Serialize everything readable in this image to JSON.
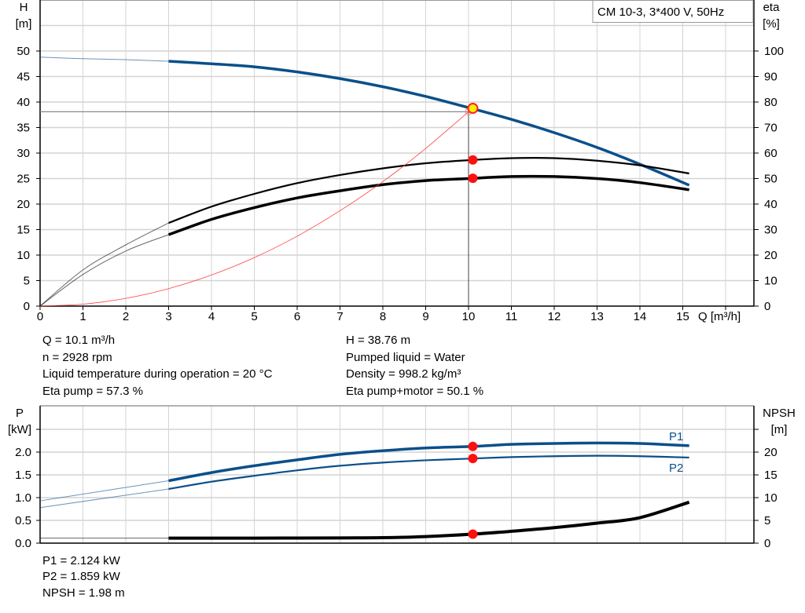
{
  "chart_data": [
    {
      "type": "line",
      "title_box": "CM 10-3, 3*400 V, 50Hz",
      "xlabel": "Q [m³/h]",
      "ylabel_left": {
        "name": "H",
        "unit": "[m]"
      },
      "ylabel_right": {
        "name": "eta",
        "unit": "[%]"
      },
      "x_ticks": [
        0,
        1,
        2,
        3,
        4,
        5,
        6,
        7,
        8,
        9,
        10,
        11,
        12,
        13,
        14,
        15
      ],
      "y_left_ticks": [
        0,
        5,
        10,
        15,
        20,
        25,
        30,
        35,
        40,
        45,
        50
      ],
      "y_right_ticks": [
        0,
        10,
        20,
        30,
        40,
        50,
        60,
        70,
        80,
        90,
        100
      ],
      "xlim": [
        0,
        16.7
      ],
      "ylim_left": [
        0,
        60
      ],
      "ylim_right": [
        0,
        120
      ],
      "grid": true,
      "series": [
        {
          "key": "H",
          "axis": "left",
          "color": "#0b4f8a",
          "x": [
            0,
            1,
            2,
            3,
            4,
            5,
            6,
            7,
            8,
            9,
            10,
            11,
            12,
            13,
            14,
            15.15
          ],
          "y": [
            48.8,
            48.5,
            48.3,
            48.0,
            47.5,
            46.9,
            45.9,
            44.6,
            43.0,
            41.1,
            38.9,
            36.6,
            34.0,
            31.1,
            27.8,
            23.7
          ],
          "thin_below": 3
        },
        {
          "key": "eta_pump",
          "axis": "right",
          "color": "#000000",
          "x": [
            0,
            1,
            2,
            3,
            4,
            5,
            6,
            7,
            8,
            9,
            10,
            11,
            12,
            13,
            14,
            15.15
          ],
          "y": [
            0,
            14.2,
            24,
            32.6,
            39,
            44,
            48.2,
            51.4,
            54,
            56,
            57.2,
            58,
            58,
            57,
            55.2,
            52
          ],
          "thin_below": 3
        },
        {
          "key": "eta_pump_motor",
          "axis": "right",
          "color": "#000000",
          "x": [
            0,
            1,
            2,
            3,
            4,
            5,
            6,
            7,
            8,
            9,
            10,
            11,
            12,
            13,
            14,
            15.15
          ],
          "y": [
            0,
            12.4,
            21.6,
            28,
            34,
            38.6,
            42.4,
            45.2,
            47.6,
            49.2,
            50,
            50.8,
            50.8,
            50,
            48.4,
            45.6
          ],
          "thin_below": 3
        },
        {
          "key": "system_curve",
          "axis": "left",
          "color": "#ff4040",
          "x": [
            0,
            1,
            2,
            3,
            4,
            5,
            6,
            7,
            8,
            9,
            10
          ],
          "y": [
            0,
            0.38,
            1.52,
            3.43,
            6.1,
            9.5,
            13.7,
            18.7,
            24.4,
            30.9,
            38.1
          ]
        }
      ],
      "duty_point": {
        "Q": 10.1,
        "H": 38.76,
        "eta_pump": 57.3,
        "eta_pump_motor": 50.1
      },
      "requested_point": {
        "Q": 10.0,
        "H": 38.1
      }
    },
    {
      "type": "line",
      "ylabel_left": {
        "name": "P",
        "unit": "[kW]"
      },
      "ylabel_right": {
        "name": "NPSH",
        "unit": "[m]"
      },
      "y_left_ticks": [
        "0.0",
        "0.5",
        "1.0",
        "1.5",
        "2.0"
      ],
      "y_right_ticks": [
        0,
        5,
        10,
        15,
        20
      ],
      "xlim": [
        0,
        16.7
      ],
      "ylim_left": [
        0,
        3.0
      ],
      "ylim_right": [
        0,
        30
      ],
      "grid": true,
      "series": [
        {
          "key": "P1",
          "name": "P1",
          "axis": "left",
          "color": "#0b4f8a",
          "x": [
            0,
            3,
            4,
            5,
            6,
            7,
            8,
            9,
            10.1,
            11,
            12,
            13,
            14,
            15.15
          ],
          "y": [
            0.93,
            1.37,
            1.55,
            1.7,
            1.83,
            1.95,
            2.03,
            2.09,
            2.124,
            2.17,
            2.19,
            2.2,
            2.19,
            2.14
          ],
          "thin_below": 3
        },
        {
          "key": "P2",
          "name": "P2",
          "axis": "left",
          "color": "#0b4f8a",
          "x": [
            0,
            3,
            4,
            5,
            6,
            7,
            8,
            9,
            10.1,
            11,
            12,
            13,
            14,
            15.15
          ],
          "y": [
            0.78,
            1.19,
            1.35,
            1.48,
            1.6,
            1.7,
            1.77,
            1.82,
            1.859,
            1.89,
            1.91,
            1.92,
            1.91,
            1.88
          ],
          "thin_below": 3
        },
        {
          "key": "NPSH",
          "axis": "right",
          "color": "#000000",
          "x": [
            0,
            3,
            5,
            7,
            8,
            9,
            10.1,
            11,
            12,
            13,
            14,
            15.15
          ],
          "y": [
            1.1,
            1.1,
            1.1,
            1.15,
            1.2,
            1.45,
            1.98,
            2.6,
            3.4,
            4.4,
            5.6,
            9.0
          ],
          "thin_below": 3
        }
      ],
      "duty_point": {
        "Q": 10.1,
        "P1": 2.124,
        "P2": 1.859,
        "NPSH": 1.98
      }
    }
  ],
  "info_top": {
    "q": "Q = 10.1 m³/h",
    "n": "n = 2928 rpm",
    "temp": "Liquid temperature during operation = 20 °C",
    "eta_pump": "Eta pump = 57.3 %",
    "h": "H = 38.76 m",
    "liquid": "Pumped liquid = Water",
    "density": "Density = 998.2 kg/m³",
    "eta_pm": "Eta pump+motor = 50.1 %"
  },
  "info_bottom": {
    "p1": "P1 = 2.124 kW",
    "p2": "P2 = 1.859 kW",
    "npsh": "NPSH = 1.98 m"
  }
}
